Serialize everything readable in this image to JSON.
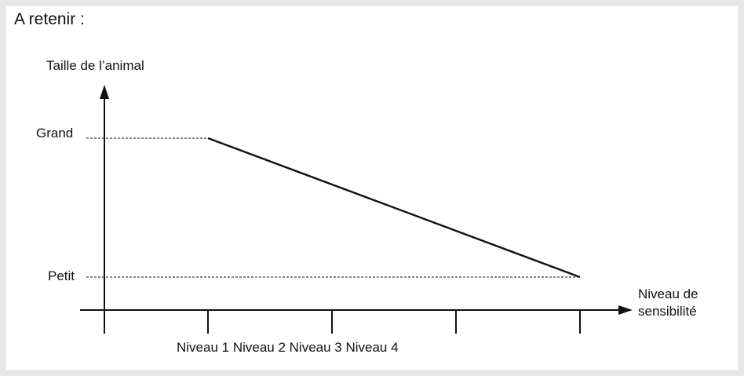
{
  "box_title": "A retenir :",
  "chart_data": {
    "type": "line",
    "ylabel": "Taille de l’animal",
    "xlabel_lines": [
      "Niveau de",
      "sensibilité"
    ],
    "y_levels": [
      "Petit",
      "Grand"
    ],
    "x_ticks": [
      "Niveau 1",
      "Niveau 2",
      "Niveau 3",
      "Niveau 4"
    ],
    "x_tick_caption": "Niveau 1 Niveau 2 Niveau 3 Niveau 4",
    "series": [
      {
        "x": [
          1,
          4
        ],
        "y": [
          "Grand",
          "Petit"
        ]
      }
    ],
    "guide_lines": "dashed from y-axis to line ends",
    "grid": false,
    "colors": {
      "line": "#111111",
      "axis": "#111111",
      "background": "#ffffff",
      "frame": "#e6e6e6"
    }
  }
}
